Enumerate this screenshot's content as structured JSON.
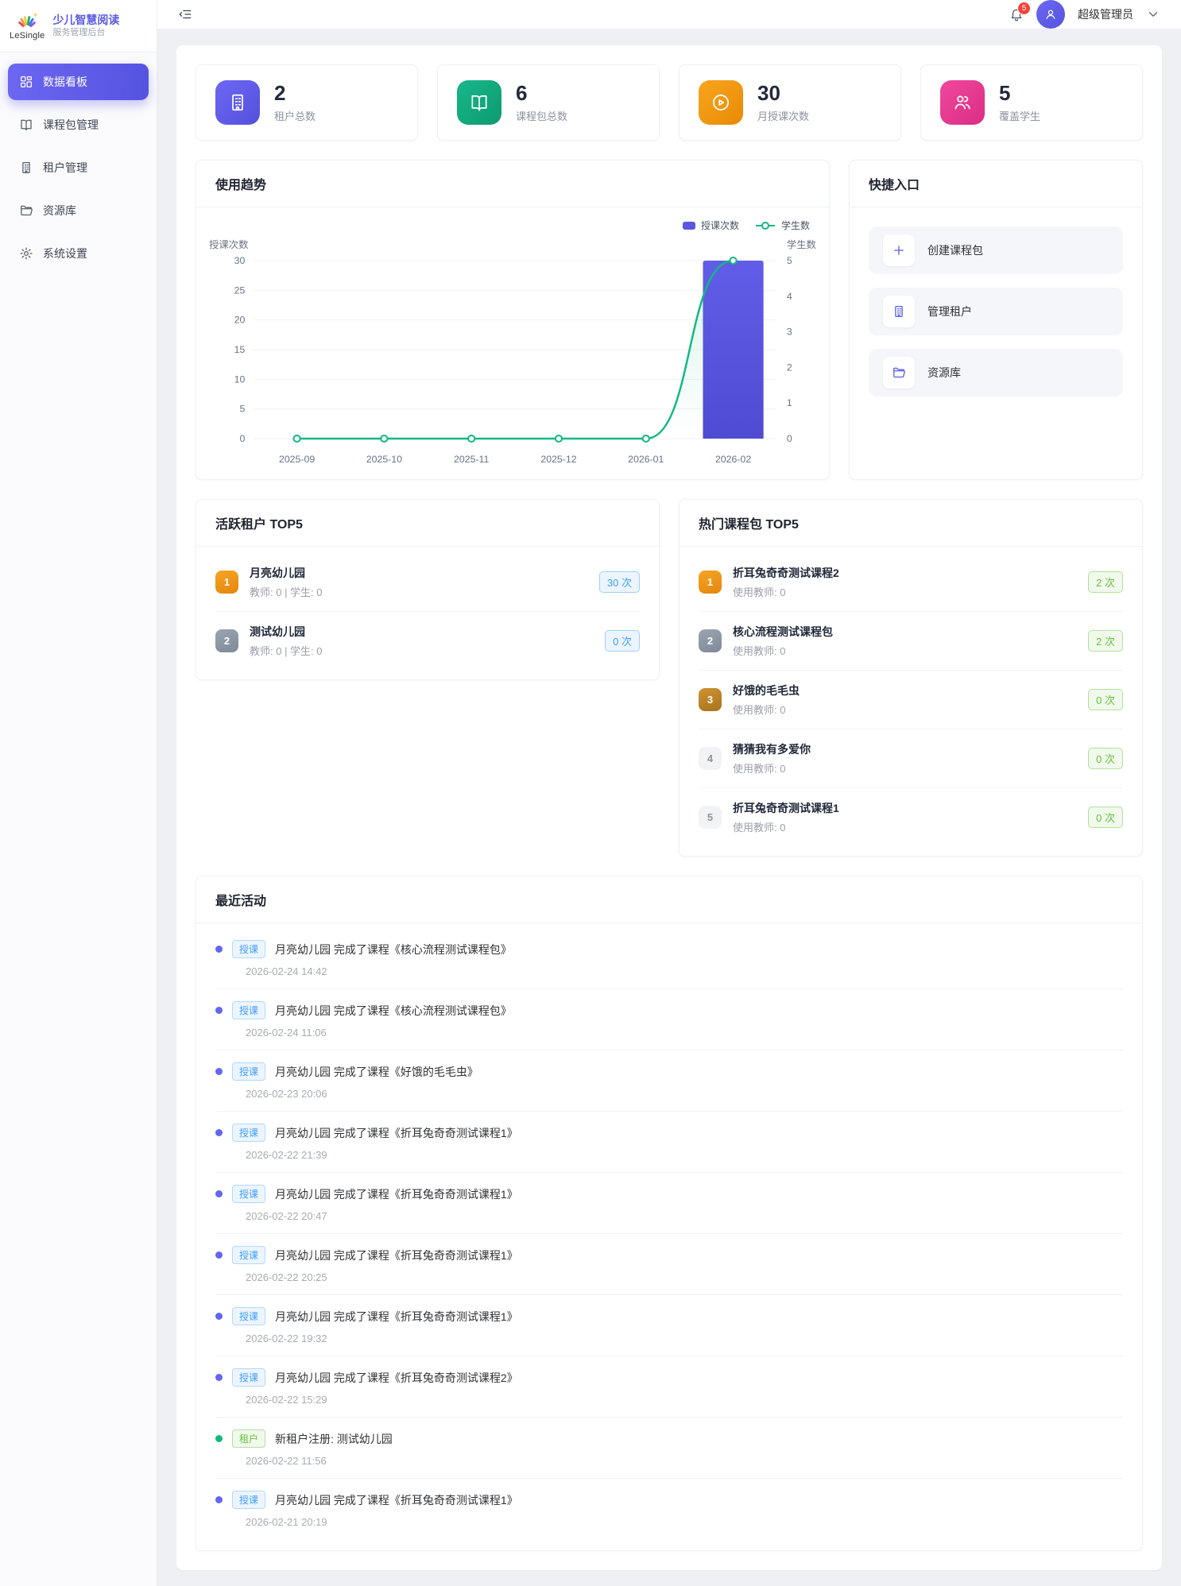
{
  "sidebar": {
    "logo": {
      "brand": "LeSingle",
      "title": "少儿智慧阅读",
      "subtitle": "服务管理后台"
    },
    "items": [
      {
        "label": "数据看板",
        "icon": "dashboard-icon",
        "active": true
      },
      {
        "label": "课程包管理",
        "icon": "book-icon",
        "active": false
      },
      {
        "label": "租户管理",
        "icon": "building-icon",
        "active": false
      },
      {
        "label": "资源库",
        "icon": "folder-icon",
        "active": false
      },
      {
        "label": "系统设置",
        "icon": "gear-icon",
        "active": false
      }
    ]
  },
  "header": {
    "notification_count": "5",
    "user_name": "超级管理员"
  },
  "stats": [
    {
      "value": "2",
      "label": "租户总数",
      "icon": "building-icon",
      "accent": "purple",
      "color": "#5b5ce6"
    },
    {
      "value": "6",
      "label": "课程包总数",
      "icon": "book-icon",
      "accent": "green",
      "color": "#10a37a"
    },
    {
      "value": "30",
      "label": "月授课次数",
      "icon": "play-circle-icon",
      "accent": "orange",
      "color": "#f59e0b"
    },
    {
      "value": "5",
      "label": "覆盖学生",
      "icon": "students-icon",
      "accent": "pink",
      "color": "#ec4899"
    }
  ],
  "chart_card": {
    "title": "使用趋势"
  },
  "chart_data": {
    "type": "bar",
    "categories": [
      "2025-09",
      "2025-10",
      "2025-11",
      "2025-12",
      "2026-01",
      "2026-02"
    ],
    "series": [
      {
        "name": "授课次数",
        "type": "bar",
        "axis": "left",
        "values": [
          0,
          0,
          0,
          0,
          0,
          30
        ],
        "color": "#5552d9"
      },
      {
        "name": "学生数",
        "type": "line",
        "axis": "right",
        "values": [
          0,
          0,
          0,
          0,
          0,
          5
        ],
        "color": "#10b981"
      }
    ],
    "left_axis": {
      "name": "授课次数",
      "min": 0,
      "max": 30,
      "ticks": [
        0,
        5,
        10,
        15,
        20,
        25,
        30
      ]
    },
    "right_axis": {
      "name": "学生数",
      "min": 0,
      "max": 5,
      "ticks": [
        0,
        1,
        2,
        3,
        4,
        5
      ]
    },
    "legend": [
      "授课次数",
      "学生数"
    ],
    "legend_position": "top-right",
    "grid": true
  },
  "quick_entry": {
    "title": "快捷入口",
    "items": [
      {
        "label": "创建课程包",
        "icon": "plus-icon"
      },
      {
        "label": "管理租户",
        "icon": "building-icon"
      },
      {
        "label": "资源库",
        "icon": "folder-icon"
      }
    ]
  },
  "active_tenants": {
    "title": "活跃租户 TOP5",
    "items": [
      {
        "rank": "1",
        "name": "月亮幼儿园",
        "meta": "教师: 0 | 学生: 0",
        "count": "30 次"
      },
      {
        "rank": "2",
        "name": "测试幼儿园",
        "meta": "教师: 0 | 学生: 0",
        "count": "0 次"
      }
    ]
  },
  "hot_packages": {
    "title": "热门课程包 TOP5",
    "items": [
      {
        "rank": "1",
        "name": "折耳兔奇奇测试课程2",
        "meta": "使用教师: 0",
        "count": "2 次"
      },
      {
        "rank": "2",
        "name": "核心流程测试课程包",
        "meta": "使用教师: 0",
        "count": "2 次"
      },
      {
        "rank": "3",
        "name": "好饿的毛毛虫",
        "meta": "使用教师: 0",
        "count": "0 次"
      },
      {
        "rank": "4",
        "name": "猜猜我有多爱你",
        "meta": "使用教师: 0",
        "count": "0 次"
      },
      {
        "rank": "5",
        "name": "折耳兔奇奇测试课程1",
        "meta": "使用教师: 0",
        "count": "0 次"
      }
    ]
  },
  "recent_activity": {
    "title": "最近活动",
    "items": [
      {
        "type": "授课",
        "kind": "teach",
        "text": "月亮幼儿园 完成了课程《核心流程测试课程包》",
        "time": "2026-02-24 14:42"
      },
      {
        "type": "授课",
        "kind": "teach",
        "text": "月亮幼儿园 完成了课程《核心流程测试课程包》",
        "time": "2026-02-24 11:06"
      },
      {
        "type": "授课",
        "kind": "teach",
        "text": "月亮幼儿园 完成了课程《好饿的毛毛虫》",
        "time": "2026-02-23 20:06"
      },
      {
        "type": "授课",
        "kind": "teach",
        "text": "月亮幼儿园 完成了课程《折耳兔奇奇测试课程1》",
        "time": "2026-02-22 21:39"
      },
      {
        "type": "授课",
        "kind": "teach",
        "text": "月亮幼儿园 完成了课程《折耳兔奇奇测试课程1》",
        "time": "2026-02-22 20:47"
      },
      {
        "type": "授课",
        "kind": "teach",
        "text": "月亮幼儿园 完成了课程《折耳兔奇奇测试课程1》",
        "time": "2026-02-22 20:25"
      },
      {
        "type": "授课",
        "kind": "teach",
        "text": "月亮幼儿园 完成了课程《折耳兔奇奇测试课程1》",
        "time": "2026-02-22 19:32"
      },
      {
        "type": "授课",
        "kind": "teach",
        "text": "月亮幼儿园 完成了课程《折耳兔奇奇测试课程2》",
        "time": "2026-02-22 15:29"
      },
      {
        "type": "租户",
        "kind": "tenant",
        "text": "新租户注册: 测试幼儿园",
        "time": "2026-02-22 11:56"
      },
      {
        "type": "授课",
        "kind": "teach",
        "text": "月亮幼儿园 完成了课程《折耳兔奇奇测试课程1》",
        "time": "2026-02-21 20:19"
      }
    ]
  }
}
